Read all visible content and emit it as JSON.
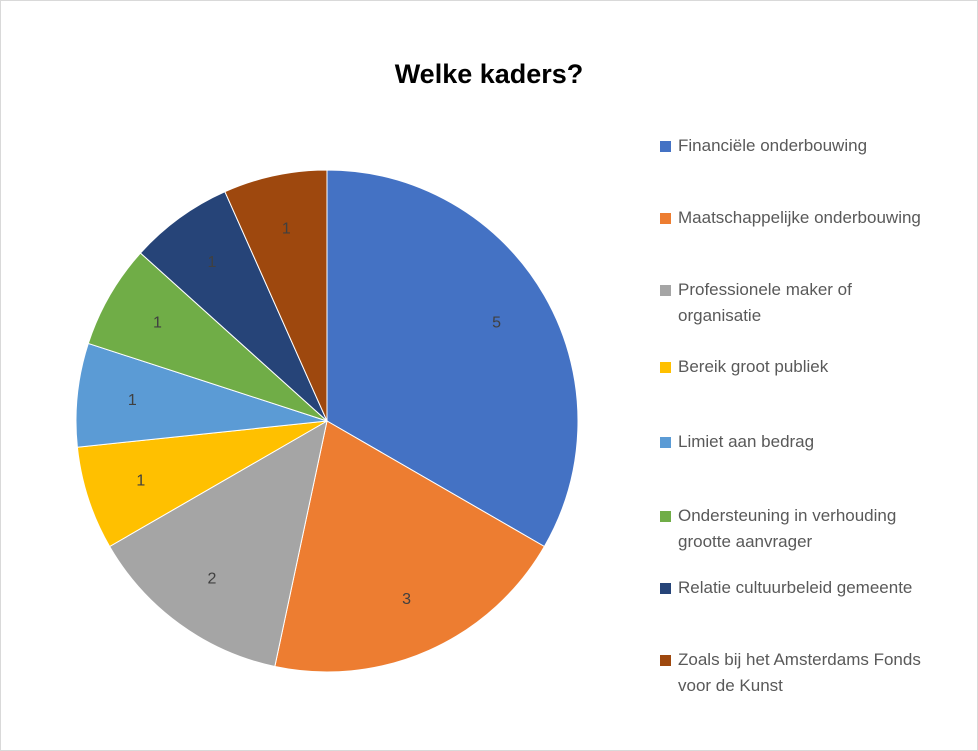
{
  "chart_data": {
    "type": "pie",
    "title": "Welke kaders?",
    "categories": [
      "Financiële onderbouwing",
      "Maatschappelijke onderbouwing",
      "Professionele maker of organisatie",
      "Bereik groot publiek",
      "Limiet aan bedrag",
      "Ondersteuning in verhouding grootte aanvrager",
      "Relatie cultuurbeleid gemeente",
      "Zoals bij het Amsterdams Fonds voor de Kunst"
    ],
    "values": [
      5,
      3,
      2,
      1,
      1,
      1,
      1,
      1
    ],
    "colors": [
      "#4472c4",
      "#ed7d31",
      "#a5a5a5",
      "#ffc000",
      "#5b9bd5",
      "#70ad47",
      "#264478",
      "#9e480e"
    ],
    "legend": "right"
  }
}
